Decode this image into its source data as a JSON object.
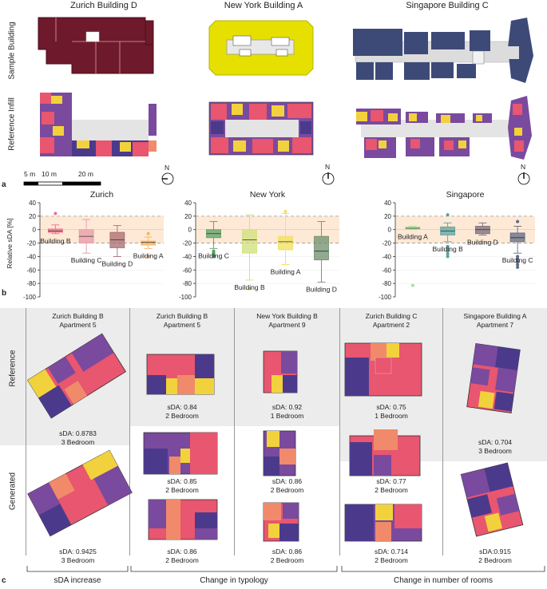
{
  "panel_a": {
    "label": "a",
    "columns": [
      "Zurich Building D",
      "New York Building A",
      "Singapore Building C"
    ],
    "rows": [
      "Sample Building",
      "Reference Infill"
    ],
    "scale_labels": [
      "5 m",
      "10 m",
      "20 m"
    ],
    "north": "N"
  },
  "panel_b": {
    "label": "b",
    "ylabel": "Relative sDA [%]"
  },
  "chart_data": [
    {
      "type": "box",
      "title": "Zurich",
      "ylabel": "Relative sDA [%]",
      "ylim": [
        -100,
        40
      ],
      "yticks": [
        40,
        20,
        0,
        -20,
        -40,
        -60,
        -80,
        -100
      ],
      "dashed_lines": [
        20,
        -20
      ],
      "categories": [
        "Building B",
        "Building C",
        "Building D",
        "Building A"
      ],
      "boxes": [
        {
          "name": "Building B",
          "color": "#f06b8a",
          "q1": -4,
          "median": -2,
          "q3": 1,
          "whisker_low": -6,
          "whisker_high": 7,
          "outliers": [
            24
          ]
        },
        {
          "name": "Building C",
          "color": "#e59aa8",
          "q1": -20,
          "median": -10,
          "q3": 0,
          "whisker_low": -35,
          "whisker_high": 15,
          "outliers": []
        },
        {
          "name": "Building D",
          "color": "#a86a6e",
          "q1": -27,
          "median": -15,
          "q3": -4,
          "whisker_low": -40,
          "whisker_high": 6,
          "outliers": []
        },
        {
          "name": "Building A",
          "color": "#f5b25e",
          "q1": -23,
          "median": -19,
          "q3": -17,
          "whisker_low": -28,
          "whisker_high": -11,
          "outliers": [
            -6,
            -40
          ]
        }
      ]
    },
    {
      "type": "box",
      "title": "New York",
      "ylim": [
        -100,
        40
      ],
      "yticks": [
        40,
        20,
        0,
        -20,
        -40,
        -60,
        -80,
        -100
      ],
      "dashed_lines": [
        20,
        -20
      ],
      "categories": [
        "Building C",
        "Building B",
        "Building A",
        "Building D"
      ],
      "boxes": [
        {
          "name": "Building C",
          "color": "#5a9e62",
          "q1": -12,
          "median": -6,
          "q3": 0,
          "whisker_low": -28,
          "whisker_high": 12,
          "outliers": [
            -32,
            -34,
            -36,
            -38,
            -40
          ]
        },
        {
          "name": "Building B",
          "color": "#cfe07a",
          "q1": -35,
          "median": -15,
          "q3": 0,
          "whisker_low": -75,
          "whisker_high": 22,
          "outliers": [
            -88
          ]
        },
        {
          "name": "Building A",
          "color": "#f1df5a",
          "q1": -30,
          "median": -18,
          "q3": -10,
          "whisker_low": -52,
          "whisker_high": 24,
          "outliers": [
            27
          ]
        },
        {
          "name": "Building D",
          "color": "#6e8e6c",
          "q1": -45,
          "median": -32,
          "q3": -10,
          "whisker_low": -78,
          "whisker_high": 12,
          "outliers": []
        }
      ]
    },
    {
      "type": "box",
      "title": "Singapore",
      "ylim": [
        -100,
        40
      ],
      "yticks": [
        40,
        20,
        0,
        -20,
        -40,
        -60,
        -80,
        -100
      ],
      "dashed_lines": [
        20,
        -20
      ],
      "categories": [
        "Building A",
        "Building B",
        "Building D",
        "Building C"
      ],
      "boxes": [
        {
          "name": "Building A",
          "color": "#a8e0a0",
          "q1": 1,
          "median": 2,
          "q3": 4,
          "whisker_low": 0,
          "whisker_high": 5,
          "outliers": [
            -83
          ]
        },
        {
          "name": "Building B",
          "color": "#5aa3a0",
          "q1": -8,
          "median": -2,
          "q3": 4,
          "whisker_low": -18,
          "whisker_high": 10,
          "outliers": [
            22,
            -25,
            -28,
            -32,
            -36,
            -40
          ]
        },
        {
          "name": "Building D",
          "color": "#7b6a7b",
          "q1": -6,
          "median": 0,
          "q3": 5,
          "whisker_low": -8,
          "whisker_high": 10,
          "outliers": []
        },
        {
          "name": "Building C",
          "color": "#5e6a86",
          "q1": -18,
          "median": -12,
          "q3": -5,
          "whisker_low": -35,
          "whisker_high": 5,
          "outliers": [
            12,
            -40,
            -44,
            -48,
            -52,
            -56
          ]
        }
      ]
    }
  ],
  "panel_c": {
    "label": "c",
    "row_labels": [
      "Reference",
      "Generated"
    ],
    "columns": [
      {
        "title": "Zurich Building B",
        "subtitle": "Apartment 5"
      },
      {
        "title": "Zurich Building B",
        "subtitle": "Apartment 5"
      },
      {
        "title": "New York Building B",
        "subtitle": "Apartment 9"
      },
      {
        "title": "Zurich Building C",
        "subtitle": "Apartment 2"
      },
      {
        "title": "Singapore Building A",
        "subtitle": "Apartment 7"
      }
    ],
    "reference_captions": [
      {
        "sda": "sDA: 0.8783",
        "rooms": "3 Bedroom"
      },
      {
        "sda": "sDA: 0.84",
        "rooms": "2 Bedroom"
      },
      {
        "sda": "sDA: 0.92",
        "rooms": "1 Bedroom"
      },
      {
        "sda": "sDA: 0.75",
        "rooms": "1 Bedroom"
      },
      {
        "sda": "sDA: 0.704",
        "rooms": "3 Bedroom"
      }
    ],
    "generated_captions_1": [
      {
        "sda": "sDA: 0.85",
        "rooms": "2 Bedroom"
      },
      {
        "sda": "sDA: 0.86",
        "rooms": "2 Bedroom"
      },
      {
        "sda": "sDA: 0.77",
        "rooms": "2 Bedroom"
      }
    ],
    "generated_captions_2": [
      {
        "sda": "sDA: 0.9425",
        "rooms": "3 Bedroom"
      },
      {
        "sda": "sDA: 0.86",
        "rooms": "2 Bedroom"
      },
      {
        "sda": "sDA: 0.86",
        "rooms": "2 Bedroom"
      },
      {
        "sda": "sDA: 0.714",
        "rooms": "2 Bedroom"
      },
      {
        "sda": "sDA:0.915",
        "rooms": "2 Bedroom"
      }
    ],
    "bottom_labels": [
      "sDA increase",
      "Change in typology",
      "Change in number of rooms"
    ]
  },
  "colors": {
    "dark_purple": "#4b3a8c",
    "purple": "#7a4a9e",
    "pink": "#e8566f",
    "salmon": "#f08a6a",
    "yellow": "#f2d23c",
    "maroon": "#6e1a2c",
    "bright_yellow": "#e6e000",
    "navy": "#3d4a78",
    "light_grey": "#e4e4e4",
    "band": "#fde9d6"
  }
}
